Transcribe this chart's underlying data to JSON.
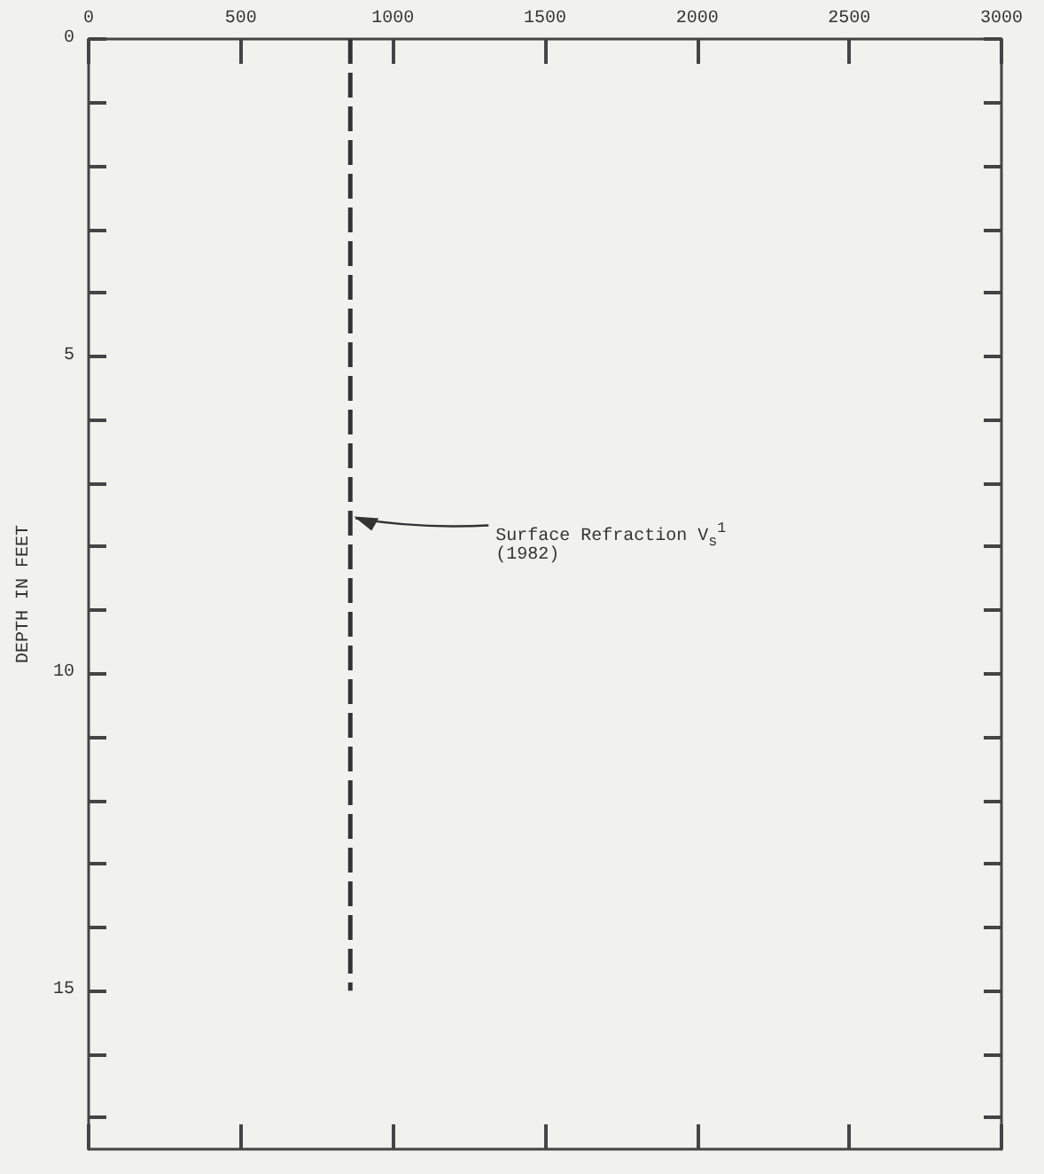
{
  "chart_data": {
    "type": "line",
    "ylabel": "DEPTH IN FEET",
    "series": [
      {
        "x": [
          860,
          860
        ],
        "values": [
          0,
          15
        ],
        "color": "#333333",
        "line_style": "dashed",
        "marker": "none"
      }
    ],
    "xlim": [
      0,
      3000
    ],
    "xticks": [
      0,
      500,
      1000,
      1500,
      2000,
      2500,
      3000
    ],
    "ylim": [
      17.5,
      0
    ],
    "yticks": [
      0,
      {
        "value": 1,
        "label": null
      },
      {
        "value": 2,
        "label": null
      },
      {
        "value": 3,
        "label": null
      },
      {
        "value": 4,
        "label": null
      },
      5,
      {
        "value": 6,
        "label": null
      },
      {
        "value": 7,
        "label": null
      },
      {
        "value": 8,
        "label": null
      },
      {
        "value": 9,
        "label": null
      },
      10,
      {
        "value": 11,
        "label": null
      },
      {
        "value": 12,
        "label": null
      },
      {
        "value": 13,
        "label": null
      },
      {
        "value": 14,
        "label": null
      },
      15,
      {
        "value": 16,
        "label": null
      },
      {
        "value": 17,
        "label": null
      }
    ],
    "annotations": [
      {
        "text": "Surface Refraction V$_{s}$$^{1}$",
        "x": 860,
        "y": 7.5
      },
      "(1982)"
    ],
    "grid": false
  }
}
